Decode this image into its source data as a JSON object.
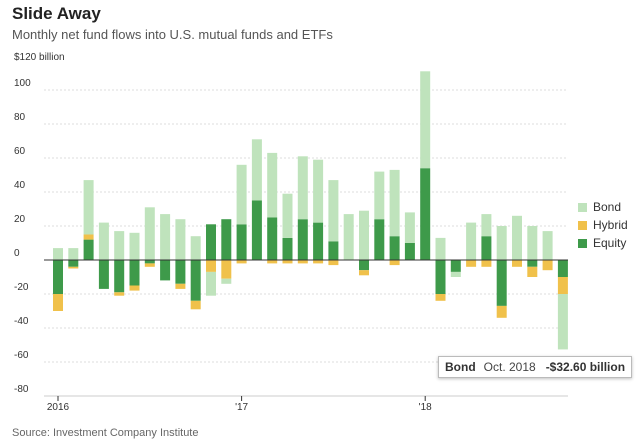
{
  "header": {
    "title": "Slide Away",
    "subtitle": "Monthly net fund flows into U.S. mutual funds and ETFs"
  },
  "footer": {
    "source": "Source: Investment Company Institute"
  },
  "tooltip": {
    "series": "Bond",
    "date": "Oct. 2018",
    "value": "-$32.60 billion"
  },
  "colors": {
    "bond": "#bfe3bc",
    "hybrid": "#f0c14b",
    "equity": "#3e9a4a"
  },
  "chart_data": {
    "type": "bar",
    "stacked": true,
    "title": "Slide Away",
    "subtitle": "Monthly net fund flows into U.S. mutual funds and ETFs",
    "unit_label": "$120 billion",
    "ylim": [
      -80,
      120
    ],
    "y_ticks": [
      -80,
      -60,
      -40,
      -20,
      0,
      20,
      40,
      60,
      80,
      100
    ],
    "y_tick_labels": [
      "-80",
      "-60",
      "-40",
      "-20",
      "0",
      "20",
      "40",
      "60",
      "80",
      "100"
    ],
    "x_ticks": [
      {
        "index": 0,
        "label": "2016"
      },
      {
        "index": 12,
        "label": "'17"
      },
      {
        "index": 24,
        "label": "'18"
      }
    ],
    "grid": true,
    "legend_position": "right",
    "categories": [
      "Jan 2016",
      "Feb 2016",
      "Mar 2016",
      "Apr 2016",
      "May 2016",
      "Jun 2016",
      "Jul 2016",
      "Aug 2016",
      "Sep 2016",
      "Oct 2016",
      "Nov 2016",
      "Dec 2016",
      "Jan 2017",
      "Feb 2017",
      "Mar 2017",
      "Apr 2017",
      "May 2017",
      "Jun 2017",
      "Jul 2017",
      "Aug 2017",
      "Sep 2017",
      "Oct 2017",
      "Nov 2017",
      "Dec 2017",
      "Jan 2018",
      "Feb 2018",
      "Mar 2018",
      "Apr 2018",
      "May 2018",
      "Jun 2018",
      "Jul 2018",
      "Aug 2018",
      "Sep 2018",
      "Oct 2018"
    ],
    "series": [
      {
        "name": "Bond",
        "values": [
          7,
          7,
          32,
          22,
          17,
          16,
          31,
          27,
          24,
          14,
          -14,
          -3,
          35,
          36,
          38,
          26,
          37,
          37,
          36,
          27,
          29,
          28,
          39,
          18,
          57,
          13,
          -3,
          22,
          13,
          20,
          26,
          20,
          17,
          -32.6
        ]
      },
      {
        "name": "Hybrid",
        "values": [
          -10,
          -1,
          3,
          0,
          -2,
          -3,
          -2,
          0,
          -3,
          -5,
          -7,
          -11,
          -2,
          0,
          -2,
          -2,
          -2,
          -2,
          -3,
          0,
          -3,
          0,
          -3,
          0,
          0,
          -4,
          0,
          -4,
          -4,
          -7,
          -4,
          -6,
          -6,
          -10
        ]
      },
      {
        "name": "Equity",
        "values": [
          -20,
          -4,
          12,
          -17,
          -19,
          -15,
          -2,
          -12,
          -14,
          -24,
          21,
          24,
          21,
          35,
          25,
          13,
          24,
          22,
          11,
          0,
          -6,
          24,
          14,
          10,
          54,
          -20,
          -7,
          0,
          14,
          -27,
          0,
          -4,
          0,
          -10
        ]
      }
    ]
  }
}
